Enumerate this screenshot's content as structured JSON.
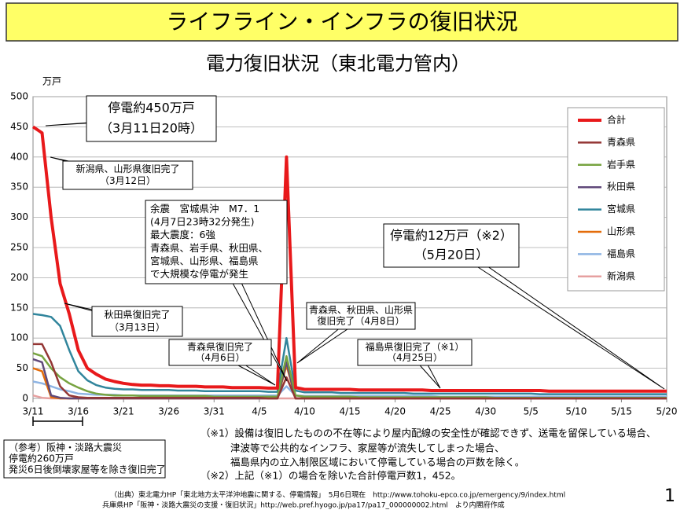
{
  "chart_data": {
    "type": "line",
    "header": "ライフライン・インフラの復旧状況",
    "title": "電力復旧状況（東北電力管内）",
    "y_label": "万戸",
    "categories": [
      "3/11",
      "3/12",
      "3/13",
      "3/14",
      "3/15",
      "3/16",
      "3/17",
      "3/18",
      "3/19",
      "3/20",
      "3/21",
      "3/22",
      "3/23",
      "3/24",
      "3/25",
      "3/26",
      "3/27",
      "3/28",
      "3/29",
      "3/30",
      "3/31",
      "4/1",
      "4/2",
      "4/3",
      "4/4",
      "4/5",
      "4/6",
      "4/7",
      "4/8",
      "4/9",
      "4/10",
      "4/11",
      "4/12",
      "4/13",
      "4/14",
      "4/15",
      "4/16",
      "4/17",
      "4/18",
      "4/19",
      "4/20",
      "4/21",
      "4/22",
      "4/23",
      "4/24",
      "4/25",
      "4/26",
      "4/27",
      "4/28",
      "4/29",
      "4/30",
      "5/1",
      "5/2",
      "5/3",
      "5/4",
      "5/5",
      "5/6",
      "5/7",
      "5/8",
      "5/9",
      "5/10",
      "5/11",
      "5/12",
      "5/13",
      "5/14",
      "5/15",
      "5/16",
      "5/17",
      "5/18",
      "5/19",
      "5/20"
    ],
    "xticks": [
      "3/11",
      "3/16",
      "3/21",
      "3/26",
      "3/31",
      "4/5",
      "4/10",
      "4/15",
      "4/20",
      "4/25",
      "4/30",
      "5/5",
      "5/10",
      "5/15",
      "5/20"
    ],
    "ylim": [
      0,
      500
    ],
    "yticks": [
      0,
      50,
      100,
      150,
      200,
      250,
      300,
      350,
      400,
      450,
      500
    ],
    "grid": true,
    "series": [
      {
        "name": "合計",
        "color": "#e8191b",
        "values": [
          450,
          440,
          300,
          190,
          140,
          80,
          50,
          40,
          32,
          28,
          25,
          23,
          22,
          22,
          21,
          21,
          20,
          20,
          20,
          19,
          19,
          19,
          18,
          18,
          18,
          18,
          17,
          17,
          400,
          18,
          15,
          15,
          15,
          15,
          15,
          15,
          14,
          14,
          14,
          14,
          14,
          14,
          14,
          14,
          13,
          13,
          13,
          13,
          13,
          13,
          13,
          13,
          13,
          13,
          13,
          13,
          13,
          12,
          12,
          12,
          12,
          12,
          12,
          12,
          12,
          12,
          12,
          12,
          12,
          12,
          12
        ]
      },
      {
        "name": "青森県",
        "color": "#943634",
        "values": [
          90,
          90,
          60,
          20,
          5,
          2,
          1,
          1,
          1,
          1,
          1,
          1,
          1,
          1,
          1,
          1,
          1,
          1,
          1,
          1,
          1,
          1,
          1,
          1,
          1,
          1,
          0,
          0,
          35,
          0,
          0,
          0,
          0,
          0,
          0,
          0,
          0,
          0,
          0,
          0,
          0,
          0,
          0,
          0,
          0,
          0,
          0,
          0,
          0,
          0,
          0,
          0,
          0,
          0,
          0,
          0,
          0,
          0,
          0,
          0,
          0,
          0,
          0,
          0,
          0,
          0,
          0,
          0,
          0,
          0,
          0
        ]
      },
      {
        "name": "岩手県",
        "color": "#77a340",
        "values": [
          75,
          70,
          50,
          35,
          25,
          18,
          12,
          8,
          6,
          5,
          5,
          5,
          4,
          4,
          4,
          4,
          4,
          4,
          4,
          4,
          3,
          3,
          3,
          3,
          3,
          3,
          3,
          3,
          70,
          5,
          3,
          3,
          3,
          3,
          3,
          3,
          2,
          2,
          2,
          2,
          2,
          2,
          2,
          2,
          2,
          2,
          2,
          2,
          2,
          2,
          2,
          1,
          1,
          1,
          1,
          1,
          1,
          1,
          1,
          1,
          1,
          1,
          1,
          1,
          1,
          1,
          1,
          1,
          1,
          1,
          1
        ]
      },
      {
        "name": "秋田県",
        "color": "#60497a",
        "values": [
          65,
          60,
          5,
          1,
          0,
          0,
          0,
          0,
          0,
          0,
          0,
          0,
          0,
          0,
          0,
          0,
          0,
          0,
          0,
          0,
          0,
          0,
          0,
          0,
          0,
          0,
          0,
          0,
          60,
          0,
          0,
          0,
          0,
          0,
          0,
          0,
          0,
          0,
          0,
          0,
          0,
          0,
          0,
          0,
          0,
          0,
          0,
          0,
          0,
          0,
          0,
          0,
          0,
          0,
          0,
          0,
          0,
          0,
          0,
          0,
          0,
          0,
          0,
          0,
          0,
          0,
          0,
          0,
          0,
          0,
          0
        ]
      },
      {
        "name": "宮城県",
        "color": "#31859c",
        "values": [
          140,
          138,
          135,
          120,
          80,
          45,
          30,
          22,
          18,
          16,
          15,
          15,
          14,
          14,
          14,
          14,
          13,
          13,
          13,
          12,
          12,
          12,
          12,
          12,
          12,
          12,
          11,
          11,
          100,
          13,
          10,
          10,
          10,
          10,
          9,
          9,
          9,
          9,
          9,
          9,
          9,
          9,
          8,
          8,
          8,
          8,
          8,
          8,
          8,
          8,
          8,
          8,
          8,
          8,
          8,
          8,
          7,
          7,
          7,
          7,
          7,
          7,
          7,
          7,
          7,
          7,
          7,
          7,
          7,
          7,
          7
        ]
      },
      {
        "name": "山形県",
        "color": "#e46c0a",
        "values": [
          50,
          45,
          2,
          0,
          0,
          0,
          0,
          0,
          0,
          0,
          0,
          0,
          0,
          0,
          0,
          0,
          0,
          0,
          0,
          0,
          0,
          0,
          0,
          0,
          0,
          0,
          0,
          0,
          55,
          0,
          0,
          0,
          0,
          0,
          0,
          0,
          0,
          0,
          0,
          0,
          0,
          0,
          0,
          0,
          0,
          0,
          0,
          0,
          0,
          0,
          0,
          0,
          0,
          0,
          0,
          0,
          0,
          0,
          0,
          0,
          0,
          0,
          0,
          0,
          0,
          0,
          0,
          0,
          0,
          0,
          0
        ]
      },
      {
        "name": "福島県",
        "color": "#8eb4e3",
        "values": [
          28,
          25,
          20,
          15,
          12,
          8,
          7,
          6,
          6,
          6,
          5,
          5,
          5,
          5,
          5,
          5,
          5,
          5,
          5,
          5,
          5,
          5,
          5,
          5,
          5,
          5,
          5,
          5,
          20,
          5,
          4,
          4,
          4,
          4,
          4,
          4,
          4,
          4,
          4,
          4,
          4,
          4,
          4,
          4,
          4,
          3,
          3,
          3,
          3,
          3,
          3,
          3,
          3,
          3,
          3,
          3,
          3,
          3,
          3,
          3,
          3,
          3,
          3,
          3,
          3,
          3,
          3,
          3,
          3,
          3,
          3
        ]
      },
      {
        "name": "新潟県",
        "color": "#e6a0a0",
        "values": [
          5,
          1,
          0,
          0,
          0,
          0,
          0,
          0,
          0,
          0,
          0,
          0,
          0,
          0,
          0,
          0,
          0,
          0,
          0,
          0,
          0,
          0,
          0,
          0,
          0,
          0,
          0,
          0,
          0,
          0,
          0,
          0,
          0,
          0,
          0,
          0,
          0,
          0,
          0,
          0,
          0,
          0,
          0,
          0,
          0,
          0,
          0,
          0,
          0,
          0,
          0,
          0,
          0,
          0,
          0,
          0,
          0,
          0,
          0,
          0,
          0,
          0,
          0,
          0,
          0,
          0,
          0,
          0,
          0,
          0,
          0
        ]
      }
    ],
    "annotations": [
      {
        "lines": [
          "停電約450万戸",
          "（3月11日20時）"
        ]
      },
      {
        "lines": [
          "新潟県、山形県復旧完了",
          "（3月12日）"
        ]
      },
      {
        "lines": [
          "余震　宮城県沖　M7．1",
          "(4月7日23時32分発生)",
          "最大震度：6強",
          "青森県、岩手県、秋田県、",
          "宮城県、山形県、福島県",
          "で大規模な停電が発生"
        ]
      },
      {
        "lines": [
          "停電約12万戸（※2）",
          "（5月20日）"
        ]
      },
      {
        "lines": [
          "秋田県復旧完了",
          "（3月13日）"
        ]
      },
      {
        "lines": [
          "青森県、秋田県、山形県",
          "復旧完了（4月8日）"
        ]
      },
      {
        "lines": [
          "青森県復旧完了",
          "（4月6日）"
        ]
      },
      {
        "lines": [
          "福島県復旧完了（※1）",
          "（4月25日）"
        ]
      },
      {
        "lines": [
          "（参考）阪神・淡路大震災",
          "停電約260万戸",
          "発災6日後倒壊家屋等を除き復旧完了"
        ]
      }
    ],
    "footnotes": [
      "（※1）設備は復旧したものの不在等により屋内配線の安全性が確認できず、送電を留保している場合、",
      "津波等で公共的なインフラ、家屋等が流失してしまった場合、",
      "福島県内の立入制限区域において停電している場合の戸数を除く。",
      "（※2）上記（※1）の場合を除いた合計停電戸数1，452。"
    ],
    "source": [
      "（出典）東北電力HP「東北地方太平洋沖地震に関する、停電情報」　5月6日現在　http://www.tohoku-epco.co.jp/emergency/9/index.html",
      "兵庫県HP「阪神・淡路大震災の支援・復旧状況」http://web.pref.hyogo.jp/pa17/pa17_000000002.html　より内閣府作成"
    ],
    "page_number": 1
  }
}
